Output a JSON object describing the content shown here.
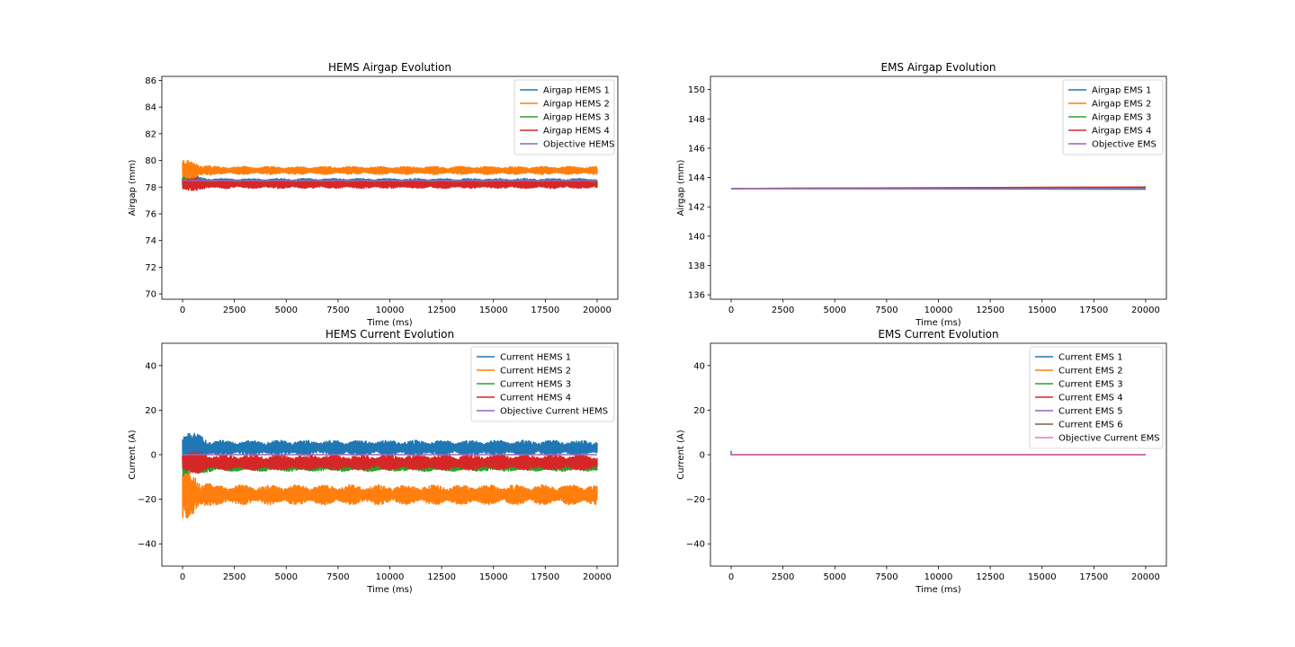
{
  "chart_data": [
    {
      "type": "line",
      "title": "HEMS Airgap Evolution",
      "xlabel": "Time (ms)",
      "ylabel": "Airgap (mm)",
      "xlim": [
        -1000,
        21000
      ],
      "ylim": [
        69.6,
        86.3
      ],
      "xticks": [
        0,
        2500,
        5000,
        7500,
        10000,
        12500,
        15000,
        17500,
        20000
      ],
      "yticks": [
        70,
        72,
        74,
        76,
        78,
        80,
        82,
        84,
        86
      ],
      "legend_position": "top-right",
      "series": [
        {
          "name": "Airgap HEMS 1",
          "color": "#1f77b4",
          "base": 78.4,
          "amp_start": 0.6,
          "amp": 0.25,
          "x_end": 20000
        },
        {
          "name": "Airgap HEMS 2",
          "color": "#ff7f0e",
          "base": 79.25,
          "amp_start": 0.85,
          "amp": 0.3,
          "x_end": 20000
        },
        {
          "name": "Airgap HEMS 3",
          "color": "#2ca02c",
          "base": 78.3,
          "amp_start": 0.5,
          "amp": 0.2,
          "x_end": 20000
        },
        {
          "name": "Airgap HEMS 4",
          "color": "#d62728",
          "base": 78.2,
          "amp_start": 0.6,
          "amp": 0.3,
          "x_end": 20000
        },
        {
          "name": "Objective HEMS",
          "color": "#9467bd",
          "base": 78.5,
          "amp_start": 0,
          "amp": 0,
          "x_end": 20000
        }
      ]
    },
    {
      "type": "line",
      "title": "EMS Airgap Evolution",
      "xlabel": "Time (ms)",
      "ylabel": "Airgap (mm)",
      "xlim": [
        -1000,
        21000
      ],
      "ylim": [
        135.7,
        150.9
      ],
      "xticks": [
        0,
        2500,
        5000,
        7500,
        10000,
        12500,
        15000,
        17500,
        20000
      ],
      "yticks": [
        136,
        138,
        140,
        142,
        144,
        146,
        148,
        150
      ],
      "legend_position": "top-right",
      "series": [
        {
          "name": "Airgap EMS 1",
          "color": "#1f77b4",
          "x": [
            0,
            20000
          ],
          "y": [
            143.25,
            143.3
          ]
        },
        {
          "name": "Airgap EMS 2",
          "color": "#ff7f0e",
          "x": [
            0,
            20000
          ],
          "y": [
            143.25,
            143.35
          ]
        },
        {
          "name": "Airgap EMS 3",
          "color": "#2ca02c",
          "x": [
            0,
            20000
          ],
          "y": [
            143.25,
            143.2
          ]
        },
        {
          "name": "Airgap EMS 4",
          "color": "#d62728",
          "x": [
            0,
            20000
          ],
          "y": [
            143.25,
            143.35
          ]
        },
        {
          "name": "Objective EMS",
          "color": "#9467bd",
          "x": [
            0,
            20000
          ],
          "y": [
            143.25,
            143.25
          ]
        }
      ]
    },
    {
      "type": "line",
      "title": "HEMS Current Evolution",
      "xlabel": "Time (ms)",
      "ylabel": "Current (A)",
      "xlim": [
        -1000,
        21000
      ],
      "ylim": [
        -50,
        50
      ],
      "xticks": [
        0,
        2500,
        5000,
        7500,
        10000,
        12500,
        15000,
        17500,
        20000
      ],
      "yticks": [
        -40,
        -20,
        0,
        20,
        40
      ],
      "legend_position": "top-right",
      "series": [
        {
          "name": "Current HEMS 1",
          "color": "#1f77b4",
          "base": 3.0,
          "amp_start": 9,
          "amp": 3.5,
          "x_end": 20000
        },
        {
          "name": "Current HEMS 2",
          "color": "#ff7f0e",
          "base": -18.0,
          "amp_start": 12,
          "amp": 4.5,
          "x_end": 20000
        },
        {
          "name": "Current HEMS 3",
          "color": "#2ca02c",
          "base": -5.0,
          "amp_start": 5,
          "amp": 2.5,
          "x_end": 20000
        },
        {
          "name": "Current HEMS 4",
          "color": "#d62728",
          "base": -3.5,
          "amp_start": 6,
          "amp": 3.5,
          "x_end": 20000
        },
        {
          "name": "Objective Current HEMS",
          "color": "#9467bd",
          "base": 0,
          "amp_start": 0,
          "amp": 0,
          "x_end": 20000
        }
      ]
    },
    {
      "type": "line",
      "title": "EMS Current Evolution",
      "xlabel": "Time (ms)",
      "ylabel": "Current (A)",
      "xlim": [
        -1000,
        21000
      ],
      "ylim": [
        -50,
        50
      ],
      "xticks": [
        0,
        2500,
        5000,
        7500,
        10000,
        12500,
        15000,
        17500,
        20000
      ],
      "yticks": [
        -40,
        -20,
        0,
        20,
        40
      ],
      "legend_position": "top-right",
      "series": [
        {
          "name": "Current EMS 1",
          "color": "#1f77b4",
          "x": [
            0,
            0,
            0,
            20000
          ],
          "y": [
            0,
            1.5,
            0,
            0
          ]
        },
        {
          "name": "Current EMS 2",
          "color": "#ff7f0e",
          "x": [
            0,
            20000
          ],
          "y": [
            0,
            0
          ]
        },
        {
          "name": "Current EMS 3",
          "color": "#2ca02c",
          "x": [
            0,
            20000
          ],
          "y": [
            0,
            0
          ]
        },
        {
          "name": "Current EMS 4",
          "color": "#d62728",
          "x": [
            0,
            20000
          ],
          "y": [
            0,
            0
          ]
        },
        {
          "name": "Current EMS 5",
          "color": "#9467bd",
          "x": [
            0,
            20000
          ],
          "y": [
            0,
            0
          ]
        },
        {
          "name": "Current EMS 6",
          "color": "#8c564b",
          "x": [
            0,
            20000
          ],
          "y": [
            0,
            0
          ]
        },
        {
          "name": "Objective Current EMS",
          "color": "#e377c2",
          "x": [
            0,
            20000
          ],
          "y": [
            0,
            0
          ]
        }
      ]
    }
  ]
}
